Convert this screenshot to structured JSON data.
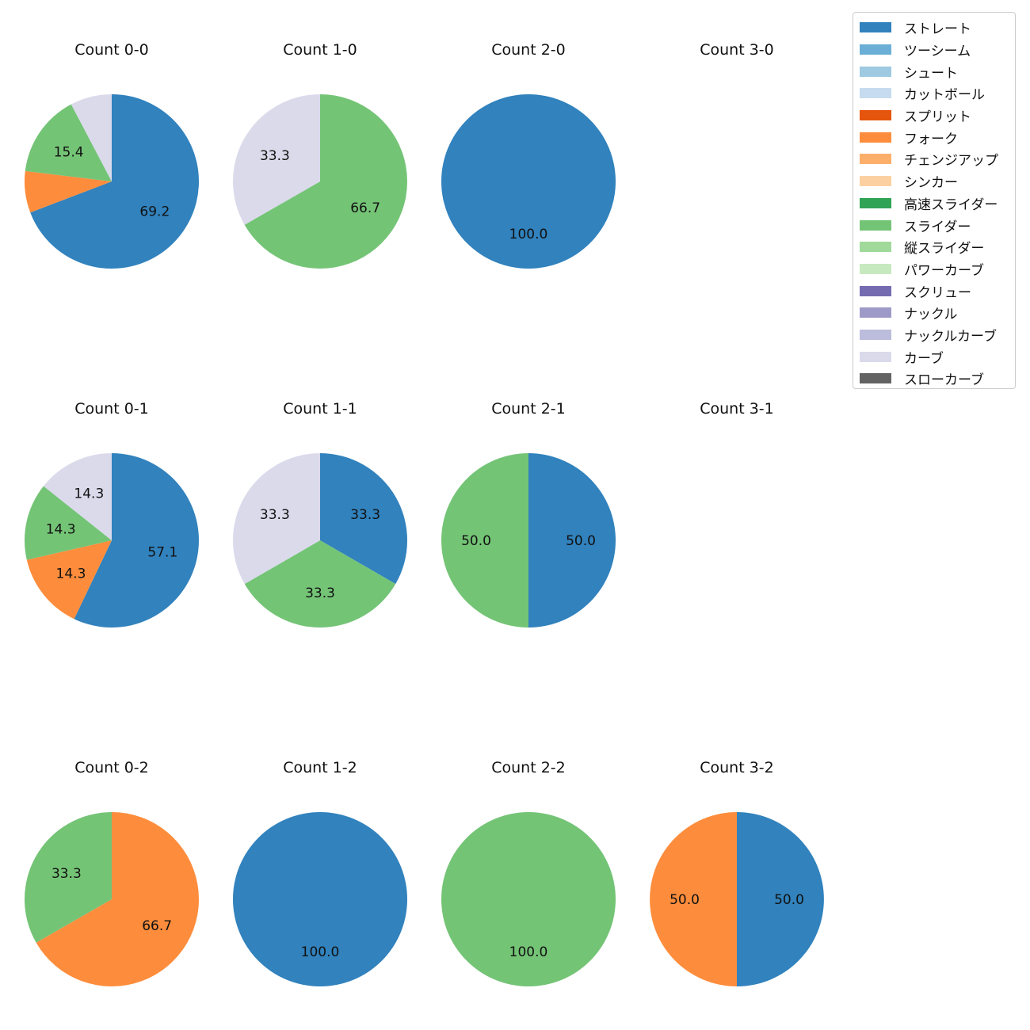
{
  "chart_data": {
    "type": "pie",
    "pitch_types": [
      {
        "name": "ストレート",
        "color": "#3182bd"
      },
      {
        "name": "ツーシーム",
        "color": "#6baed6"
      },
      {
        "name": "シュート",
        "color": "#9ecae1"
      },
      {
        "name": "カットボール",
        "color": "#c6dbef"
      },
      {
        "name": "スプリット",
        "color": "#e6550d"
      },
      {
        "name": "フォーク",
        "color": "#fd8d3c"
      },
      {
        "name": "チェンジアップ",
        "color": "#fdae6b"
      },
      {
        "name": "シンカー",
        "color": "#fdd0a2"
      },
      {
        "name": "高速スライダー",
        "color": "#31a354"
      },
      {
        "name": "スライダー",
        "color": "#74c476"
      },
      {
        "name": "縦スライダー",
        "color": "#a1d99b"
      },
      {
        "name": "パワーカーブ",
        "color": "#c7e9c0"
      },
      {
        "name": "スクリュー",
        "color": "#756bb1"
      },
      {
        "name": "ナックル",
        "color": "#9e9ac8"
      },
      {
        "name": "ナックルカーブ",
        "color": "#bcbddc"
      },
      {
        "name": "カーブ",
        "color": "#dadaeb"
      },
      {
        "name": "スローカーブ",
        "color": "#636363"
      }
    ],
    "charts": [
      {
        "title": "Count 0-0",
        "slices": [
          {
            "pitch": "ストレート",
            "value": 69.2,
            "label": "69.2"
          },
          {
            "pitch": "フォーク",
            "value": 7.7,
            "label": ""
          },
          {
            "pitch": "スライダー",
            "value": 15.4,
            "label": "15.4"
          },
          {
            "pitch": "カーブ",
            "value": 7.7,
            "label": ""
          }
        ]
      },
      {
        "title": "Count 1-0",
        "slices": [
          {
            "pitch": "スライダー",
            "value": 66.7,
            "label": "66.7"
          },
          {
            "pitch": "カーブ",
            "value": 33.3,
            "label": "33.3"
          }
        ]
      },
      {
        "title": "Count 2-0",
        "slices": [
          {
            "pitch": "ストレート",
            "value": 100.0,
            "label": "100.0"
          }
        ]
      },
      {
        "title": "Count 3-0",
        "slices": []
      },
      {
        "title": "Count 0-1",
        "slices": [
          {
            "pitch": "ストレート",
            "value": 57.1,
            "label": "57.1"
          },
          {
            "pitch": "フォーク",
            "value": 14.3,
            "label": "14.3"
          },
          {
            "pitch": "スライダー",
            "value": 14.3,
            "label": "14.3"
          },
          {
            "pitch": "カーブ",
            "value": 14.3,
            "label": "14.3"
          }
        ]
      },
      {
        "title": "Count 1-1",
        "slices": [
          {
            "pitch": "ストレート",
            "value": 33.3,
            "label": "33.3"
          },
          {
            "pitch": "スライダー",
            "value": 33.3,
            "label": "33.3"
          },
          {
            "pitch": "カーブ",
            "value": 33.3,
            "label": "33.3"
          }
        ]
      },
      {
        "title": "Count 2-1",
        "slices": [
          {
            "pitch": "ストレート",
            "value": 50.0,
            "label": "50.0"
          },
          {
            "pitch": "スライダー",
            "value": 50.0,
            "label": "50.0"
          }
        ]
      },
      {
        "title": "Count 3-1",
        "slices": []
      },
      {
        "title": "Count 0-2",
        "slices": [
          {
            "pitch": "フォーク",
            "value": 66.7,
            "label": "66.7"
          },
          {
            "pitch": "スライダー",
            "value": 33.3,
            "label": "33.3"
          }
        ]
      },
      {
        "title": "Count 1-2",
        "slices": [
          {
            "pitch": "ストレート",
            "value": 100.0,
            "label": "100.0"
          }
        ]
      },
      {
        "title": "Count 2-2",
        "slices": [
          {
            "pitch": "スライダー",
            "value": 100.0,
            "label": "100.0"
          }
        ]
      },
      {
        "title": "Count 3-2",
        "slices": [
          {
            "pitch": "ストレート",
            "value": 50.0,
            "label": "50.0"
          },
          {
            "pitch": "フォーク",
            "value": 50.0,
            "label": "50.0"
          }
        ]
      }
    ],
    "legend": {
      "position": "top-right"
    }
  }
}
